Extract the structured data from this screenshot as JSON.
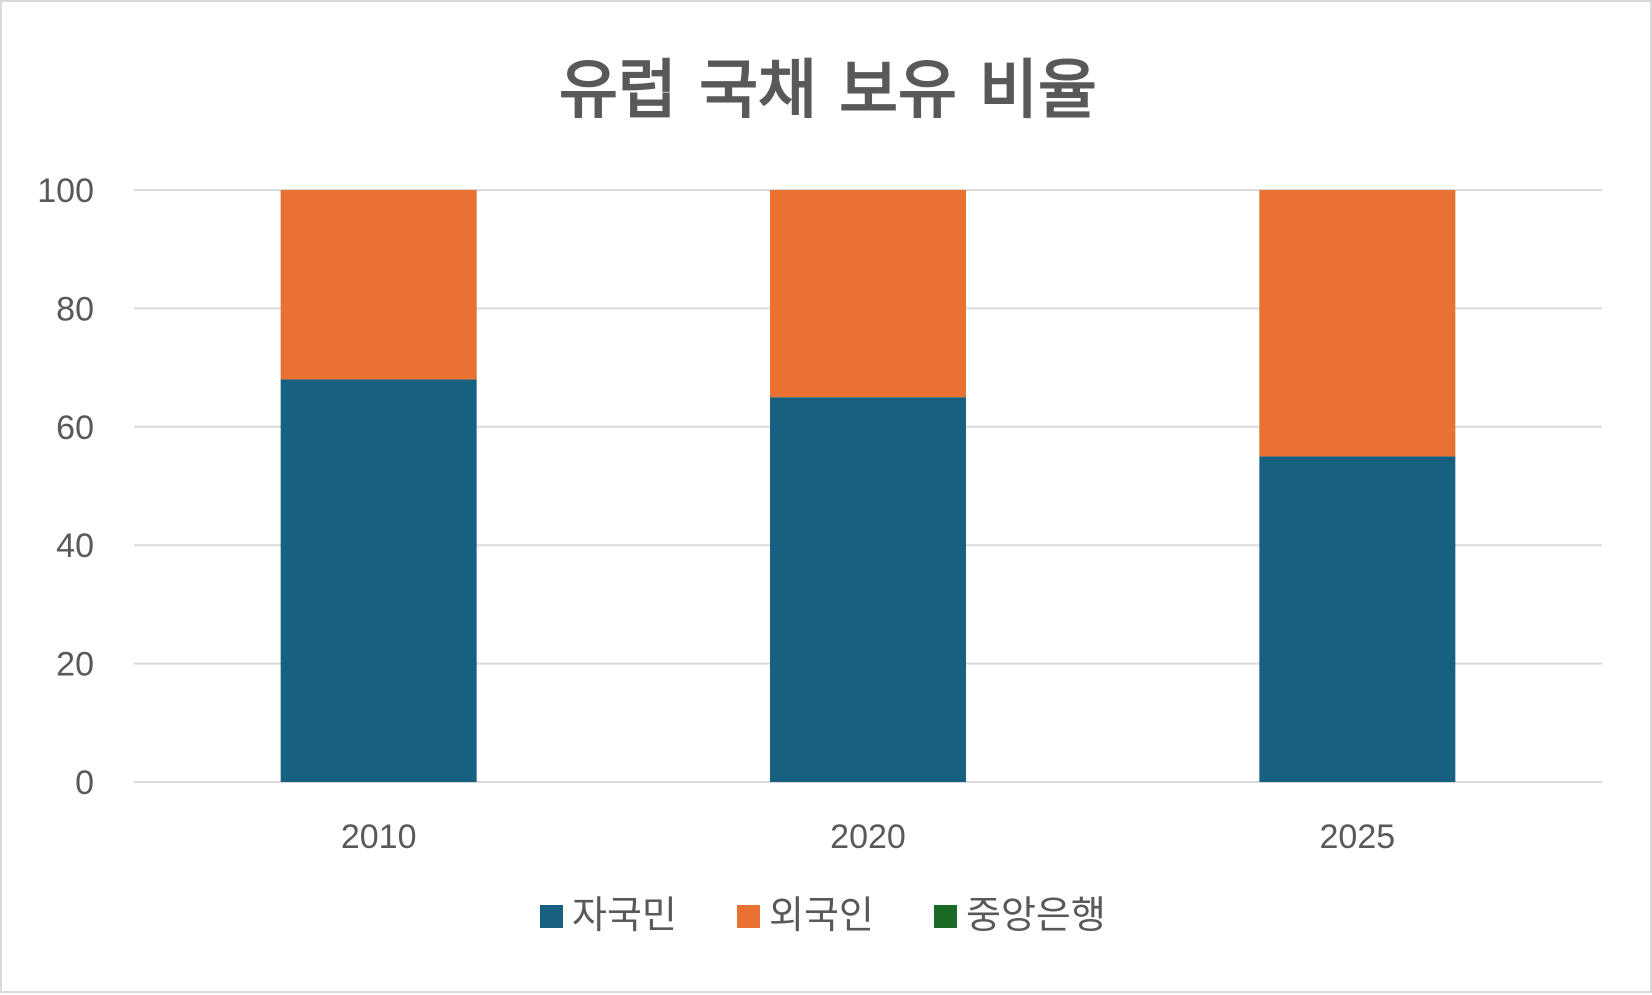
{
  "chart_data": {
    "type": "bar",
    "stacked": true,
    "title": "유럽 국채 보유 비율",
    "xlabel": "",
    "ylabel": "",
    "categories": [
      "2010",
      "2020",
      "2025"
    ],
    "series": [
      {
        "name": "자국민",
        "values": [
          68,
          65,
          55
        ],
        "color": "#17607f"
      },
      {
        "name": "외국인",
        "values": [
          32,
          35,
          45
        ],
        "color": "#e97132"
      },
      {
        "name": "중앙은행",
        "values": [
          0,
          0,
          0
        ],
        "color": "#196b24"
      }
    ],
    "ylim": [
      0,
      100
    ],
    "yticks": [
      0,
      20,
      40,
      60,
      80,
      100
    ],
    "grid": true,
    "legend_position": "bottom"
  }
}
